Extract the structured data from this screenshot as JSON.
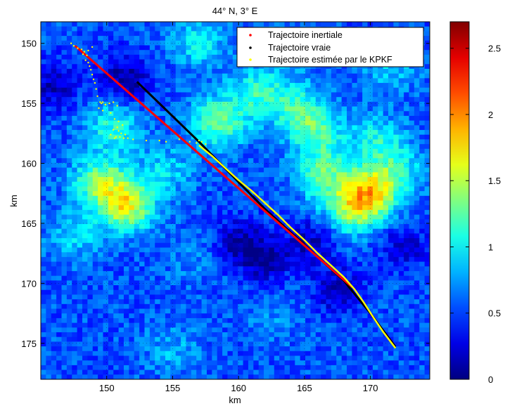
{
  "chart_data": {
    "type": "heatmap",
    "title": "44° N, 3° E",
    "xlabel": "km",
    "ylabel": "km",
    "xlim": [
      145,
      174.5
    ],
    "ylim": [
      148.2,
      178
    ],
    "y_reversed": true,
    "x_ticks": [
      150,
      155,
      160,
      165,
      170
    ],
    "y_ticks": [
      150,
      155,
      160,
      165,
      170,
      175
    ],
    "colorbar": {
      "colormap": "jet",
      "range": [
        0,
        2.7
      ],
      "ticks": [
        0,
        0.5,
        1,
        1.5,
        2,
        2.5
      ]
    },
    "heatmap_hotspots": [
      {
        "x": 149.5,
        "y": 161.5,
        "value": 1.2
      },
      {
        "x": 151.5,
        "y": 163.5,
        "value": 1.5
      },
      {
        "x": 150.5,
        "y": 157.0,
        "value": 1.0
      },
      {
        "x": 158.5,
        "y": 156.5,
        "value": 1.2
      },
      {
        "x": 161.5,
        "y": 154.0,
        "value": 1.0
      },
      {
        "x": 164.5,
        "y": 155.5,
        "value": 1.0
      },
      {
        "x": 166.0,
        "y": 157.5,
        "value": 1.0
      },
      {
        "x": 166.5,
        "y": 161.0,
        "value": 1.1
      },
      {
        "x": 170.0,
        "y": 162.5,
        "value": 1.5
      },
      {
        "x": 168.5,
        "y": 164.0,
        "value": 1.1
      },
      {
        "x": 170.5,
        "y": 158.0,
        "value": 0.9
      },
      {
        "x": 172.0,
        "y": 160.5,
        "value": 0.9
      },
      {
        "x": 157.0,
        "y": 150.0,
        "value": 0.9
      },
      {
        "x": 171.5,
        "y": 152.0,
        "value": 0.8
      },
      {
        "x": 154.5,
        "y": 160.5,
        "value": 0.8
      },
      {
        "x": 147.5,
        "y": 166.0,
        "value": 0.8
      },
      {
        "x": 155.0,
        "y": 175.5,
        "value": 0.7
      },
      {
        "x": 162.5,
        "y": 173.0,
        "value": 0.6
      },
      {
        "x": 156.5,
        "y": 168.0,
        "value": 0.6
      },
      {
        "x": 164.0,
        "y": 150.5,
        "value": 0.7
      }
    ],
    "heatmap_lows": [
      {
        "x": 151.5,
        "y": 153.0,
        "value": 0.1
      },
      {
        "x": 146.0,
        "y": 153.5,
        "value": 0.2
      },
      {
        "x": 162.0,
        "y": 168.0,
        "value": 0.15
      },
      {
        "x": 167.5,
        "y": 170.5,
        "value": 0.2
      },
      {
        "x": 172.5,
        "y": 167.0,
        "value": 0.25
      },
      {
        "x": 160.0,
        "y": 166.5,
        "value": 0.2
      },
      {
        "x": 165.5,
        "y": 166.5,
        "value": 0.2
      }
    ],
    "series": [
      {
        "name": "Trajectoire inertiale",
        "color": "#ff0000",
        "x": [
          147.6,
          168.6
        ],
        "y": [
          150.2,
          170.3
        ]
      },
      {
        "name": "Trajectoire vraie",
        "color": "#000000",
        "x": [
          152.3,
          157.0,
          162.0,
          166.0,
          168.0,
          170.0,
          171.9
        ],
        "y": [
          153.2,
          158.2,
          163.8,
          167.8,
          169.8,
          172.5,
          175.3
        ]
      },
      {
        "name": "Trajectoire estimée par le KPKF",
        "color": "#ffff00",
        "x": [
          157.0,
          158.0,
          159.0,
          160.0,
          161.0,
          162.0,
          163.0,
          164.0,
          165.0,
          166.0,
          167.0,
          168.0,
          168.8,
          169.5,
          170.2,
          171.0,
          171.9
        ],
        "y": [
          158.5,
          159.4,
          160.4,
          161.4,
          162.3,
          163.3,
          164.3,
          165.4,
          166.4,
          167.5,
          168.5,
          169.5,
          170.5,
          171.6,
          172.8,
          174.1,
          175.4
        ],
        "scatter_x": [
          147.3,
          147.5,
          147.8,
          148.1,
          148.3,
          148.6,
          148.9,
          148.2,
          148.5,
          148.4,
          148.6,
          148.7,
          148.8,
          148.9,
          149.0,
          149.1,
          149.2,
          149.3,
          149.5,
          149.6,
          149.7,
          149.9,
          150.2,
          150.5,
          150.8,
          149.4,
          149.7,
          150.3,
          150.6,
          150.9,
          151.2,
          150.8,
          150.5,
          150.9,
          151.1,
          151.4,
          150.7,
          150.3,
          150.6,
          151.0,
          151.3,
          151.6,
          152.0,
          153.0,
          154.0,
          154.5,
          155.5,
          156.3,
          156.8,
          157.0,
          157.2,
          157.5
        ],
        "scatter_y": [
          150.0,
          150.2,
          150.4,
          150.5,
          150.7,
          150.6,
          150.3,
          150.9,
          151.0,
          151.4,
          151.6,
          151.9,
          152.2,
          152.6,
          153.0,
          153.3,
          153.8,
          154.4,
          154.9,
          155.0,
          154.9,
          155.1,
          155.0,
          154.9,
          155.2,
          155.4,
          155.6,
          155.8,
          156.3,
          156.5,
          156.8,
          157.0,
          157.2,
          157.3,
          157.5,
          157.6,
          157.8,
          157.6,
          157.9,
          157.8,
          157.9,
          157.9,
          158.0,
          158.1,
          158.1,
          158.2,
          158.0,
          158.2,
          158.3,
          158.1,
          158.2,
          158.4
        ]
      }
    ],
    "legend_placement": "top-right"
  }
}
